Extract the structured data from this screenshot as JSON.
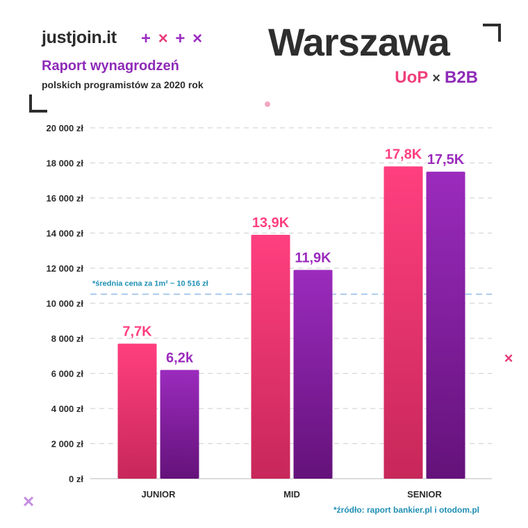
{
  "header": {
    "brand": "justjoin.it",
    "brand_marks": [
      "+",
      "×",
      "+",
      "×"
    ],
    "report_title": "Raport wynagrodzeń",
    "report_subtitle": "polskich programistów za 2020 rok",
    "city": "Warszawa",
    "badge_left": "UoP",
    "badge_sep": "×",
    "badge_right": "B2B"
  },
  "colors": {
    "uop": "#ff3f7f",
    "uop_dark": "#c7275a",
    "b2b": "#9b2bbd",
    "b2b_dark": "#64127a",
    "reference": "#9cc3ea"
  },
  "chart_data": {
    "type": "bar",
    "categories": [
      "JUNIOR",
      "MID",
      "SENIOR"
    ],
    "series": [
      {
        "name": "UoP",
        "values": [
          7700,
          13900,
          17800
        ],
        "labels": [
          "7,7K",
          "13,9K",
          "17,8K"
        ]
      },
      {
        "name": "B2B",
        "values": [
          6200,
          11900,
          17500
        ],
        "labels": [
          "6,2k",
          "11,9K",
          "17,5K"
        ]
      }
    ],
    "yticks": [
      "0 zł",
      "2 000 zł",
      "4 000 zł",
      "6 000 zł",
      "8 000 zł",
      "10 000 zł",
      "12 000 zł",
      "14 000 zł",
      "16 000 zł",
      "18 000 zł",
      "20 000 zł"
    ],
    "ylim": [
      0,
      20000
    ],
    "grid": true,
    "reference_line": {
      "value": 10516,
      "label": "*średnia cena za 1m² ~ 10 516 zł"
    }
  },
  "source": "*źródło: raport bankier.pl i otodom.pl",
  "decorations": {
    "top_dot": "dot-icon",
    "right_mark": "×",
    "bottom_left_mark": "×"
  }
}
